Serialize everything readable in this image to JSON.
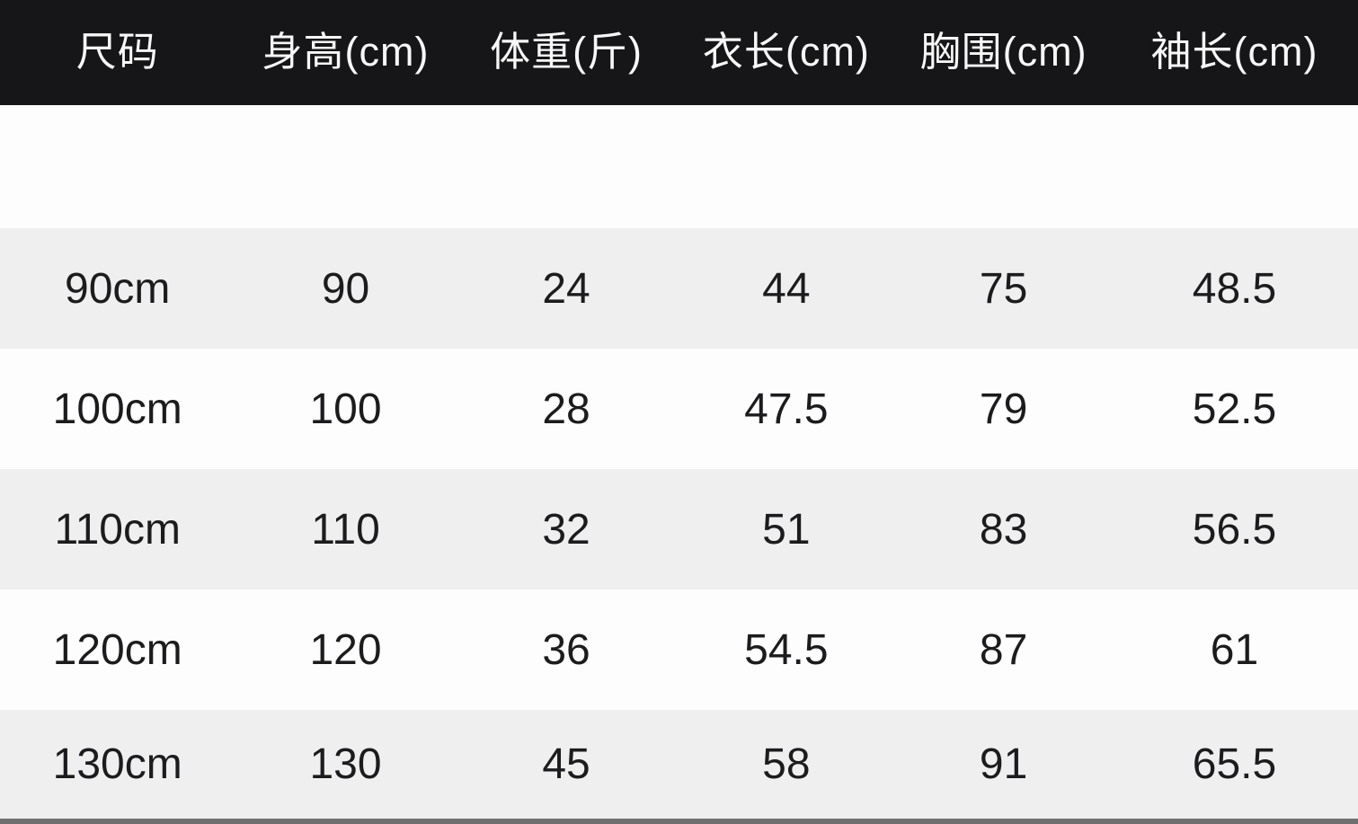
{
  "table": {
    "header": [
      "尺码",
      "身高(cm)",
      "体重(斤)",
      "衣长(cm)",
      "胸围(cm)",
      "袖长(cm)"
    ],
    "rows": [
      [
        "90cm",
        "90",
        "24",
        "44",
        "75",
        "48.5"
      ],
      [
        "100cm",
        "100",
        "28",
        "47.5",
        "79",
        "52.5"
      ],
      [
        "110cm",
        "110",
        "32",
        "51",
        "83",
        "56.5"
      ],
      [
        "120cm",
        "120",
        "36",
        "54.5",
        "87",
        "61"
      ],
      [
        "130cm",
        "130",
        "45",
        "58",
        "91",
        "65.5"
      ]
    ]
  },
  "colors": {
    "header_bg": "#161618",
    "header_text": "#f7f7f7",
    "row_stripe": "#efefef",
    "row_plain": "#fdfdfd",
    "cell_text": "#1c1c1e",
    "bottom_bar": "#6f6f6f"
  },
  "chart_data": {
    "type": "table",
    "title": "儿童服装尺码表 (kids garment size chart)",
    "columns": [
      "尺码",
      "身高(cm)",
      "体重(斤)",
      "衣长(cm)",
      "胸围(cm)",
      "袖长(cm)"
    ],
    "rows": [
      [
        "90cm",
        90,
        24,
        44,
        75,
        48.5
      ],
      [
        "100cm",
        100,
        28,
        47.5,
        79,
        52.5
      ],
      [
        "110cm",
        110,
        32,
        51,
        83,
        56.5
      ],
      [
        "120cm",
        120,
        36,
        54.5,
        87,
        61
      ],
      [
        "130cm",
        130,
        45,
        58,
        91,
        65.5
      ]
    ],
    "layout_hints": {
      "header_style": "black band, white text",
      "row_striping": "rows 1,3,5 light gray; rows 2,4 white",
      "spacer_between_header_and_rows": true,
      "bottom_divider_bar": true
    }
  }
}
